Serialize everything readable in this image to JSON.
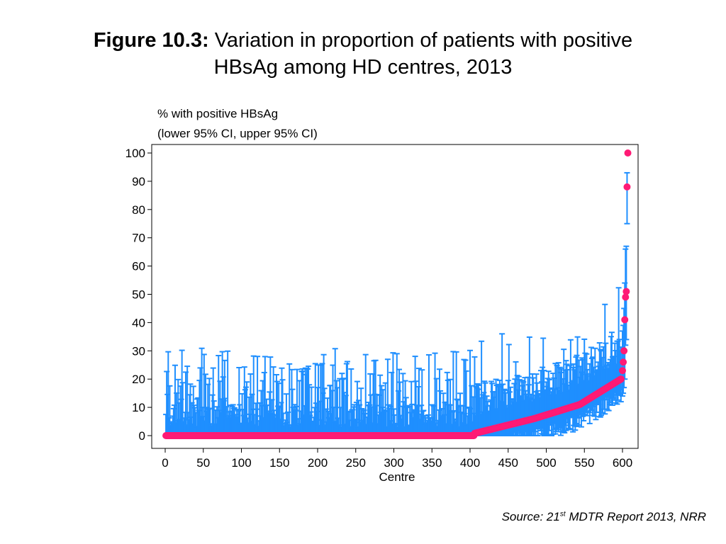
{
  "title": {
    "prefix": "Figure 10.3:",
    "line1": "Variation in proportion of patients with positive",
    "line2": "HBsAg among HD centres, 2013"
  },
  "source": {
    "before": "Source: 21",
    "sup": "st",
    "after": " MDTR Report 2013, NRR"
  },
  "colors": {
    "point": "#ff1a75",
    "ci": "#1f8fff",
    "axis": "#000000"
  },
  "chart_data": {
    "type": "scatter",
    "ylabel_line1": "% with positive HBsAg",
    "ylabel_line2": "(lower 95% CI, upper 95% CI)",
    "xlabel": "Centre",
    "xlim": [
      0,
      607
    ],
    "ylim": [
      0,
      100
    ],
    "xticks": [
      0,
      50,
      100,
      150,
      200,
      250,
      300,
      350,
      400,
      450,
      500,
      550,
      600
    ],
    "yticks": [
      0,
      10,
      20,
      30,
      40,
      50,
      60,
      70,
      80,
      90,
      100
    ],
    "n_centres": 607,
    "zero_count": 405,
    "nonzero_estimates": [
      0.8,
      1.2,
      1.6,
      2.0,
      2.4,
      2.8,
      3.2,
      3.6,
      4.0,
      4.4,
      4.8,
      5.2,
      5.6,
      6.0,
      6.5,
      7.0,
      7.5,
      8.0,
      8.5,
      9.0,
      9.5,
      10.0,
      10.5,
      11.0,
      12.0,
      13.0,
      14.0,
      15.0,
      16.0,
      17.0,
      18.0,
      19.0,
      20.0,
      23.0,
      26.0,
      30.0,
      41.0,
      49.0,
      51.0,
      88.0,
      100.0
    ],
    "highlight_points": [
      {
        "x": 598,
        "y": 20,
        "ci": [
          12,
          29
        ]
      },
      {
        "x": 600,
        "y": 23,
        "ci": [
          14,
          37
        ]
      },
      {
        "x": 601,
        "y": 26,
        "ci": [
          15,
          39
        ]
      },
      {
        "x": 602,
        "y": 30,
        "ci": [
          17,
          45
        ]
      },
      {
        "x": 603,
        "y": 41,
        "ci": [
          20,
          54
        ]
      },
      {
        "x": 604,
        "y": 49,
        "ci": [
          32,
          66
        ]
      },
      {
        "x": 605,
        "y": 51,
        "ci": [
          34,
          67
        ]
      },
      {
        "x": 606,
        "y": 88,
        "ci": [
          75,
          93
        ]
      },
      {
        "x": 607,
        "y": 100,
        "ci": [
          100,
          100
        ]
      }
    ],
    "grid": false,
    "legend": "none"
  }
}
